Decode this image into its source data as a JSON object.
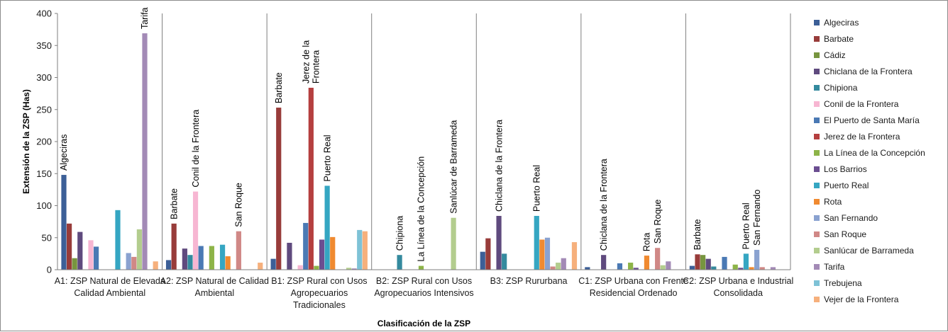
{
  "chart_data": {
    "type": "bar",
    "ylabel": "Extensión de la ZSP (Has)",
    "xlabel": "Clasificación de la ZSP",
    "ylim": [
      0,
      400
    ],
    "yticks": [
      0,
      50,
      100,
      150,
      200,
      250,
      300,
      350,
      400
    ],
    "grid": false,
    "legend_position": "right",
    "categories": [
      [
        "A1: ZSP Natural de Elevada",
        "Calidad Ambiental"
      ],
      [
        "A2: ZSP Natural de Calidad",
        "Ambiental"
      ],
      [
        "B1: ZSP Rural con Usos",
        "Agropecuarios",
        "Tradicionales"
      ],
      [
        "B2: ZSP Rural con Usos",
        "Agropecuarios Intensivos"
      ],
      [
        "B3: ZSP Rururbana"
      ],
      [
        "C1: ZSP Urbana con Frente",
        "Residencial Ordenado"
      ],
      [
        "C2: ZSP Urbana e Industrial",
        "Consolidada"
      ]
    ],
    "series": [
      {
        "name": "Algeciras",
        "color": "#3c5f97",
        "values": [
          148,
          15,
          17,
          0,
          28,
          4,
          6
        ]
      },
      {
        "name": "Barbate",
        "color": "#983c3a",
        "values": [
          72,
          72,
          253,
          0,
          49,
          0,
          24
        ]
      },
      {
        "name": "Cádiz",
        "color": "#77953f",
        "values": [
          18,
          0,
          0,
          0,
          0,
          0,
          23
        ]
      },
      {
        "name": "Chiclana de la Frontera",
        "color": "#5f4a7e",
        "values": [
          59,
          33,
          42,
          0,
          84,
          23,
          17
        ]
      },
      {
        "name": "Chipiona",
        "color": "#348a9e",
        "values": [
          0,
          23,
          0,
          23,
          25,
          0,
          5
        ]
      },
      {
        "name": "Conil de la Frontera",
        "color": "#f7b6d2",
        "values": [
          46,
          122,
          7,
          0,
          0,
          0,
          0
        ]
      },
      {
        "name": "El Puerto de Santa María",
        "color": "#4a79b4",
        "values": [
          36,
          37,
          73,
          0,
          0,
          10,
          20
        ]
      },
      {
        "name": "Jerez de la Frontera",
        "color": "#b53f3f",
        "values": [
          0,
          0,
          284,
          0,
          0,
          0,
          0
        ]
      },
      {
        "name": "La Línea de la Concepción",
        "color": "#8db448",
        "values": [
          0,
          37,
          6,
          6,
          0,
          11,
          8
        ]
      },
      {
        "name": "Los Barrios",
        "color": "#6b4e91",
        "values": [
          0,
          0,
          47,
          0,
          0,
          3,
          3
        ]
      },
      {
        "name": "Puerto Real",
        "color": "#35a6c2",
        "values": [
          93,
          39,
          131,
          0,
          84,
          0,
          25
        ]
      },
      {
        "name": "Rota",
        "color": "#f08a30",
        "values": [
          0,
          21,
          51,
          0,
          47,
          22,
          4
        ]
      },
      {
        "name": "San Fernando",
        "color": "#8aa2d0",
        "values": [
          26,
          0,
          0,
          0,
          50,
          0,
          31
        ]
      },
      {
        "name": "San Roque",
        "color": "#d08886",
        "values": [
          20,
          60,
          0,
          0,
          5,
          34,
          4
        ]
      },
      {
        "name": "Sanlúcar de Barrameda",
        "color": "#b3cd8e",
        "values": [
          63,
          0,
          3,
          81,
          11,
          7,
          0
        ]
      },
      {
        "name": "Tarifa",
        "color": "#a38ab6",
        "values": [
          369,
          0,
          2,
          0,
          18,
          13,
          4
        ]
      },
      {
        "name": "Trebujena",
        "color": "#7ec2d6",
        "values": [
          0,
          0,
          62,
          0,
          0,
          0,
          0
        ]
      },
      {
        "name": "Vejer de la Frontera",
        "color": "#f6b07c",
        "values": [
          13,
          11,
          60,
          0,
          43,
          0,
          0
        ]
      }
    ],
    "annotations": [
      {
        "category": 0,
        "series": "Algeciras",
        "text": [
          "Algeciras"
        ]
      },
      {
        "category": 0,
        "series": "Tarifa",
        "text": [
          "Tarifa"
        ]
      },
      {
        "category": 1,
        "series": "Barbate",
        "text": [
          "Barbate"
        ]
      },
      {
        "category": 1,
        "series": "Conil de la Frontera",
        "text": [
          "Conil de la Frontera"
        ]
      },
      {
        "category": 1,
        "series": "San Roque",
        "text": [
          "San Roque"
        ]
      },
      {
        "category": 2,
        "series": "Barbate",
        "text": [
          "Barbate"
        ]
      },
      {
        "category": 2,
        "series": "Jerez de la Frontera",
        "text": [
          "Jerez de la",
          "Frontera"
        ]
      },
      {
        "category": 2,
        "series": "Puerto Real",
        "text": [
          "Puerto Real"
        ]
      },
      {
        "category": 3,
        "series": "Chipiona",
        "text": [
          "Chipiona"
        ]
      },
      {
        "category": 3,
        "series": "La Línea de la Concepción",
        "text": [
          "La Línea de la Concepción"
        ]
      },
      {
        "category": 3,
        "series": "Sanlúcar de Barrameda",
        "text": [
          "Sanlúcar de Barrameda"
        ]
      },
      {
        "category": 4,
        "series": "Chiclana de la Frontera",
        "text": [
          "Chiclana de la Frontera"
        ]
      },
      {
        "category": 4,
        "series": "Puerto Real",
        "text": [
          "Puerto Real"
        ]
      },
      {
        "category": 5,
        "series": "Chiclana de la Frontera",
        "text": [
          "Chiclana de la Frontera"
        ]
      },
      {
        "category": 5,
        "series": "Rota",
        "text": [
          "Rota"
        ]
      },
      {
        "category": 5,
        "series": "San Roque",
        "text": [
          "San Roque"
        ]
      },
      {
        "category": 6,
        "series": "Barbate",
        "text": [
          "Barbate"
        ]
      },
      {
        "category": 6,
        "series": "Puerto Real",
        "text": [
          "Puerto Real"
        ]
      },
      {
        "category": 6,
        "series": "San Fernando",
        "text": [
          "San Fernando"
        ]
      }
    ]
  }
}
